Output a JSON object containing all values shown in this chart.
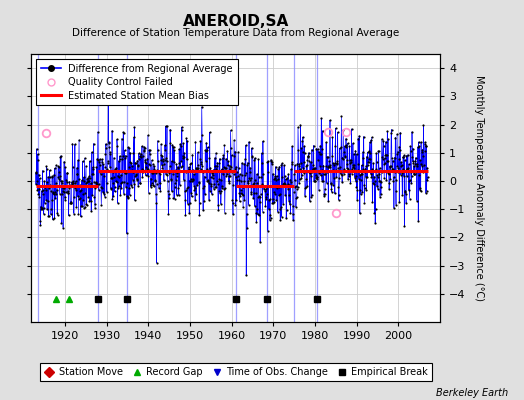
{
  "title": "ANEROID,SA",
  "subtitle": "Difference of Station Temperature Data from Regional Average",
  "ylabel": "Monthly Temperature Anomaly Difference (°C)",
  "xlabel_years": [
    1920,
    1930,
    1940,
    1950,
    1960,
    1970,
    1980,
    1990,
    2000
  ],
  "xlim": [
    1912,
    2010
  ],
  "ylim": [
    -5,
    4.5
  ],
  "yticks": [
    -4,
    -3,
    -2,
    -1,
    0,
    1,
    2,
    3,
    4
  ],
  "background_color": "#e0e0e0",
  "plot_bg_color": "#ffffff",
  "seed": 42,
  "data_start_year": 1913,
  "data_end_year": 2007,
  "bias_segments": [
    {
      "start": 1913.0,
      "end": 1928.0,
      "bias": -0.18
    },
    {
      "start": 1928.0,
      "end": 1935.0,
      "bias": 0.35
    },
    {
      "start": 1935.0,
      "end": 1961.0,
      "bias": 0.35
    },
    {
      "start": 1961.0,
      "end": 1968.5,
      "bias": -0.18
    },
    {
      "start": 1968.5,
      "end": 1975.0,
      "bias": -0.18
    },
    {
      "start": 1975.0,
      "end": 1980.5,
      "bias": 0.35
    },
    {
      "start": 1980.5,
      "end": 1986.5,
      "bias": 0.35
    },
    {
      "start": 1986.5,
      "end": 2007.0,
      "bias": 0.35
    }
  ],
  "vertical_lines": [
    1913.5,
    1928.0,
    1935.0,
    1961.0,
    1968.5,
    1975.0,
    1980.5
  ],
  "record_gaps": [
    1918.0,
    1921.0
  ],
  "empirical_breaks": [
    1928.0,
    1935.0,
    1961.0,
    1968.5,
    1980.5
  ],
  "qc_failed_approx": [
    {
      "year": 1915.5,
      "val": 1.7
    },
    {
      "year": 1983.0,
      "val": 1.75
    },
    {
      "year": 1987.5,
      "val": 1.75
    },
    {
      "year": 1985.0,
      "val": -1.15
    }
  ],
  "watermark": "Berkeley Earth",
  "line_color": "#0000ff",
  "dot_color": "#000000",
  "bias_color": "#ff0000",
  "qc_color": "#ff99cc",
  "vline_color": "#8888ff",
  "grid_color": "#cccccc"
}
